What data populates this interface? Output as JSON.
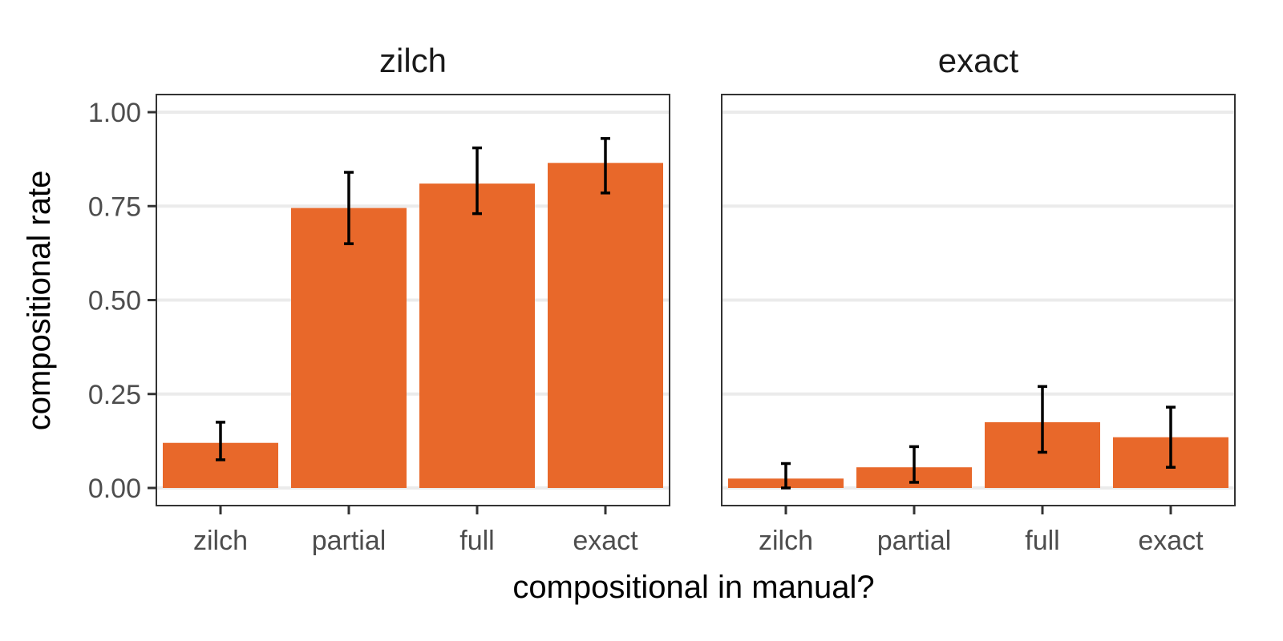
{
  "chart_data": {
    "type": "bar",
    "facet_variable_shown": true,
    "categories": [
      "zilch",
      "partial",
      "full",
      "exact"
    ],
    "xlabel": "compositional in manual?",
    "ylabel": "compositional rate",
    "ylim": [
      0,
      1.05
    ],
    "yticks": [
      0.0,
      0.25,
      0.5,
      0.75,
      1.0
    ],
    "ytick_labels": [
      "0.00",
      "0.25",
      "0.50",
      "0.75",
      "1.00"
    ],
    "grid": true,
    "bar_color": "#E8682A",
    "facets": [
      {
        "title": "zilch",
        "values": [
          0.12,
          0.745,
          0.81,
          0.865
        ],
        "error_low": [
          0.075,
          0.65,
          0.73,
          0.785
        ],
        "error_high": [
          0.175,
          0.84,
          0.905,
          0.93
        ]
      },
      {
        "title": "exact",
        "values": [
          0.025,
          0.055,
          0.175,
          0.135
        ],
        "error_low": [
          0.0,
          0.015,
          0.095,
          0.055
        ],
        "error_high": [
          0.065,
          0.11,
          0.27,
          0.215
        ]
      }
    ]
  }
}
